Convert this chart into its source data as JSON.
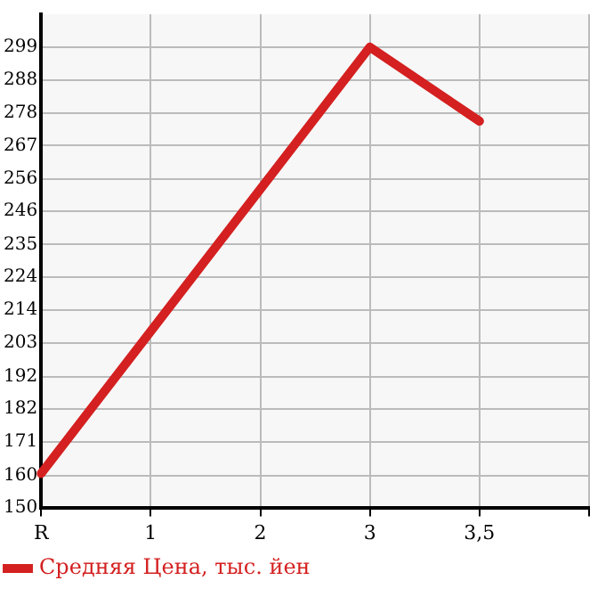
{
  "chart_data": {
    "type": "line",
    "categories": [
      "R",
      "1",
      "2",
      "3",
      "3,5",
      null
    ],
    "series": [
      {
        "name": "Средняя Цена, тыс. йен",
        "color": "#d42020",
        "values": [
          161,
          207,
          253,
          299,
          275,
          null
        ]
      }
    ],
    "ylim": [
      150,
      309.6
    ],
    "yticks": [
      150,
      {
        "value": 160.4,
        "label": "160"
      },
      {
        "value": 171.3,
        "label": "171"
      },
      {
        "value": 181.9,
        "label": "182"
      },
      {
        "value": 192.4,
        "label": "192"
      },
      {
        "value": 203.2,
        "label": "203"
      },
      {
        "value": 213.9,
        "label": "214"
      },
      {
        "value": 224.5,
        "label": "224"
      },
      {
        "value": 235.1,
        "label": "235"
      },
      {
        "value": 245.8,
        "label": "246"
      },
      {
        "value": 256.4,
        "label": "256"
      },
      {
        "value": 267.1,
        "label": "267"
      },
      {
        "value": 277.7,
        "label": "278"
      },
      {
        "value": 288.4,
        "label": "288"
      },
      299
    ],
    "grid": true,
    "legend": "bottom left",
    "marker": "none",
    "line_style": "solid"
  }
}
